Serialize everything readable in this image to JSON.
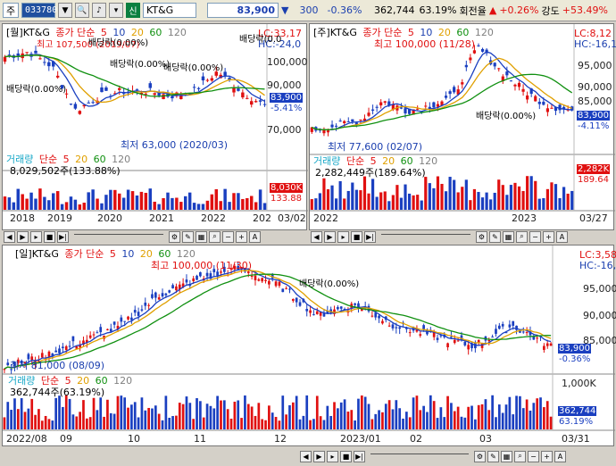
{
  "topbar": {
    "market": "주",
    "code": "033780",
    "badge": "신",
    "name": "KT&G",
    "price": "83,900",
    "change": "300",
    "change_pct": "-0.36%",
    "volume": "362,744",
    "turnover": "63.19%",
    "turnover_label": "회전율",
    "turnover_change": "+0.26%",
    "strength_label": "강도",
    "strength": "+53.49%"
  },
  "monthly": {
    "title_period": "[월]KT&G",
    "title_series": "종가 단순",
    "ma": [
      "5",
      "10",
      "20",
      "60",
      "120"
    ],
    "lc": "LC:33,17",
    "hc": "HC:-24,0",
    "high_text": "최고 107,500 (2019/07)",
    "low_text": "최저 63,000 (2020/03)",
    "dividend_labels": [
      "배당락(0.00%)",
      "배당락(0.00%)",
      "배당락(0.00%)",
      "배당락(0.00%)",
      "배당락(0.0"
    ],
    "price_axis": [
      "100,000",
      "90,000",
      "70,000"
    ],
    "price_box": "83,900",
    "pct_box": "-5.41%",
    "vol_title": "거래량",
    "vol_series": "단순",
    "vol_ma": [
      "5",
      "20",
      "60",
      "120"
    ],
    "vol_value": "8,029,502주(133.88%)",
    "vol_box": "8,030K",
    "vol_pct_box": "133.88",
    "x_labels": [
      "2018",
      "2019",
      "2020",
      "2021",
      "2022",
      "202"
    ],
    "x_end": "03/02"
  },
  "daily_small": {
    "title_period": "[주]KT&G",
    "title_series": "종가 단순",
    "ma": [
      "5",
      "10",
      "20",
      "60",
      "120"
    ],
    "lc": "LC:8,12",
    "hc": "HC:-16,1",
    "high_text": "최고 100,000 (11/28)",
    "low_text": "최저 77,600 (02/07)",
    "dividend_label": "배당락(0.00%)",
    "price_axis": [
      "95,000",
      "90,000",
      "85,000"
    ],
    "price_box": "83,900",
    "pct_box": "-4.11%",
    "vol_title": "거래량",
    "vol_series": "단순",
    "vol_ma": [
      "5",
      "20",
      "60",
      "120"
    ],
    "vol_value": "2,282,449주(189.64%)",
    "vol_box": "2,282K",
    "vol_pct_box": "189.64",
    "x_labels": [
      "2022",
      "2023"
    ],
    "x_end": "03/27"
  },
  "daily": {
    "title_period": "[일]KT&G",
    "title_series": "종가 단순",
    "ma": [
      "5",
      "10",
      "20",
      "60",
      "120"
    ],
    "lc": "LC:3,58",
    "hc": "HC:-16,10",
    "high_text": "최고 100,000 (11/30)",
    "low_text": "최저 81,000 (08/09)",
    "dividend_label": "배당락(0.00%)",
    "price_axis": [
      "95,000",
      "90,000",
      "85,000"
    ],
    "price_box": "83,900",
    "pct_box": "-0.36%",
    "vol_title": "거래량",
    "vol_series": "단순",
    "vol_ma": [
      "5",
      "20",
      "60",
      "120"
    ],
    "vol_value": "362,744주(63.19%)",
    "vol_axis": "1,000K",
    "vol_box": "362,744",
    "vol_pct_box": "63.19%",
    "x_labels": [
      "2022/08",
      "09",
      "10",
      "11",
      "12",
      "2023/01",
      "02",
      "03"
    ],
    "x_end": "03/31"
  },
  "colors": {
    "up": "#e01010",
    "down": "#1a3fc0",
    "ma5": "#c00000",
    "ma10": "#1a3fc0",
    "ma20": "#e0a000",
    "ma60": "#109010",
    "ma120": "#808080"
  }
}
